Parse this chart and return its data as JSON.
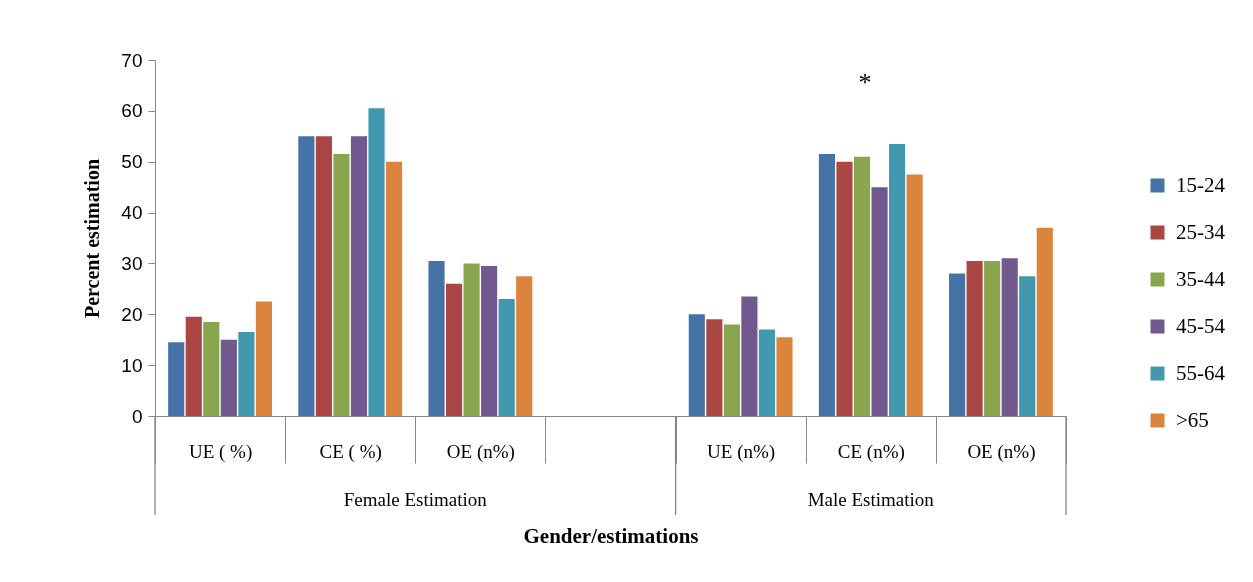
{
  "chart_data": {
    "type": "bar",
    "xlabel": "Gender/estimations",
    "ylabel": "Percent estimation",
    "categories": [
      "UE ( %)",
      "CE ( %)",
      "OE (n%)",
      null,
      "UE (n%)",
      "CE (n%)",
      "OE (n%)"
    ],
    "series": [
      {
        "name": "15-24",
        "color": "#4572a7",
        "values": [
          14.5,
          55,
          30.5,
          null,
          20,
          51.5,
          28
        ]
      },
      {
        "name": "25-34",
        "color": "#aa4643",
        "values": [
          19.5,
          55,
          26,
          null,
          19,
          50,
          30.5
        ]
      },
      {
        "name": "35-44",
        "color": "#89a54e",
        "values": [
          18.5,
          51.5,
          30,
          null,
          18,
          51,
          30.5
        ]
      },
      {
        "name": "45-54",
        "color": "#71588f",
        "values": [
          15,
          55,
          29.5,
          null,
          23.5,
          45,
          31
        ]
      },
      {
        "name": "55-64",
        "color": "#4198af",
        "values": [
          16.5,
          60.5,
          23,
          null,
          17,
          53.5,
          27.5
        ]
      },
      {
        "name": ">65",
        "color": "#db843d",
        "values": [
          22.5,
          50,
          27.5,
          null,
          15.5,
          47.5,
          37
        ]
      }
    ],
    "ylim": [
      0,
      70
    ],
    "yticks": [
      0,
      10,
      20,
      30,
      40,
      50,
      60,
      70
    ],
    "legend": "right",
    "annotations": [
      "Female Estimation",
      "Male Estimation",
      "*"
    ]
  }
}
